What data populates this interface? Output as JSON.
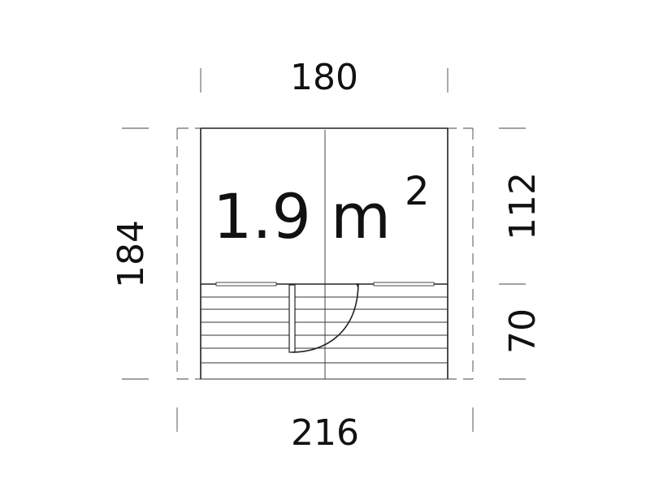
{
  "floor_plan": {
    "area": {
      "value": "1.9 m",
      "exponent": "2"
    },
    "dimensions": {
      "top_width": "180",
      "bottom_width": "216",
      "left_depth": "184",
      "right_upper": "112",
      "right_lower": "70"
    },
    "colors": {
      "line": "#222222",
      "background": "#ffffff"
    }
  }
}
